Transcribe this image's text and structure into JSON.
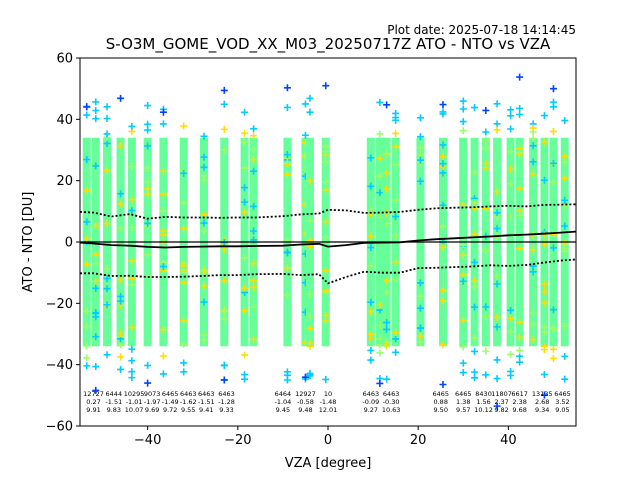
{
  "header": {
    "plot_date": "Plot date: 2025-07-18 14:14:45",
    "title": "S-O3M_GOME_VOD_XX_M03_20250717Z ATO - NTO vs VZA"
  },
  "chart_data": {
    "type": "scatter",
    "title": "S-O3M_GOME_VOD_XX_M03_20250717Z ATO - NTO vs VZA",
    "xlabel": "VZA [degree]",
    "ylabel": "ATO - NTO [DU]",
    "xlim": [
      -55,
      55
    ],
    "ylim": [
      -60,
      60
    ],
    "xticks": [
      -40,
      -20,
      0,
      20,
      40
    ],
    "yticks": [
      -60,
      -40,
      -20,
      0,
      20,
      40,
      60
    ],
    "grid": false,
    "colors": {
      "core_band": "#66ff99",
      "cyan": "#00ccff",
      "blue": "#0044ff",
      "yellow": "#ffdd00",
      "lightgreen": "#99ff66",
      "mean_line": "#000000",
      "zero_line": "#000000"
    },
    "bins": [
      {
        "x": -52,
        "n": "12727",
        "mean": "0.27",
        "sd": "9.91"
      },
      {
        "x": -47.5,
        "n": "6444",
        "mean": "-1.51",
        "sd": "9.83"
      },
      {
        "x": -43,
        "n": "10295",
        "mean": "-1.01",
        "sd": "10.07"
      },
      {
        "x": -39,
        "n": "9073",
        "mean": "-1.97",
        "sd": "9.69"
      },
      {
        "x": -35,
        "n": "6465",
        "mean": "-1.49",
        "sd": "9.72"
      },
      {
        "x": -31,
        "n": "6463",
        "mean": "-1.62",
        "sd": "9.55"
      },
      {
        "x": -27,
        "n": "6463",
        "mean": "-1.51",
        "sd": "9.41"
      },
      {
        "x": -22.5,
        "n": "6463",
        "mean": "-1.28",
        "sd": "9.33"
      },
      {
        "x": -10,
        "n": "6464",
        "mean": "-1.04",
        "sd": "9.45"
      },
      {
        "x": -5,
        "n": "12927",
        "mean": "-0.58",
        "sd": "9.48"
      },
      {
        "x": 0,
        "n": "10",
        "mean": "-1.48",
        "sd": "12.01"
      },
      {
        "x": 9.5,
        "n": "6463",
        "mean": "-0.09",
        "sd": "9.27"
      },
      {
        "x": 14,
        "n": "6463",
        "mean": "-0.30",
        "sd": "10.63"
      },
      {
        "x": 25,
        "n": "6465",
        "mean": "0.88",
        "sd": "9.50"
      },
      {
        "x": 30,
        "n": "6465",
        "mean": "1.38",
        "sd": "9.57"
      },
      {
        "x": 34.5,
        "n": "8430",
        "mean": "1.56",
        "sd": "10.12"
      },
      {
        "x": 38.5,
        "n": "11807",
        "mean": "2.37",
        "sd": "9.82"
      },
      {
        "x": 42.5,
        "n": "6617",
        "mean": "2.38",
        "sd": "9.68"
      },
      {
        "x": 47.5,
        "n": "13135",
        "mean": "2.68",
        "sd": "9.34"
      },
      {
        "x": 52,
        "n": "6465",
        "mean": "3.52",
        "sd": "9.05"
      }
    ],
    "columns_x": [
      -53.5,
      -51.5,
      -49,
      -46,
      -43.5,
      -40,
      -36.5,
      -32,
      -27.5,
      -23,
      -18.5,
      -16.5,
      -9,
      -5,
      -4,
      -0.5,
      9.5,
      11.5,
      13,
      15,
      20.5,
      25.5,
      30,
      32.5,
      35,
      37.5,
      40.5,
      42.5,
      45.5,
      48,
      50,
      52.5
    ],
    "mean_curve": {
      "x": [
        -55,
        -52,
        -48,
        -44,
        -40,
        -36,
        -32,
        -28,
        -24,
        -20,
        -16,
        -10,
        -6,
        -2,
        0,
        4,
        8,
        12,
        16,
        20,
        24,
        28,
        32,
        36,
        40,
        44,
        48,
        52,
        55
      ],
      "y": [
        -0.2,
        -0.5,
        -1.0,
        -1.2,
        -1.6,
        -1.8,
        -1.6,
        -1.5,
        -1.4,
        -1.4,
        -1.3,
        -1.2,
        -0.8,
        -0.6,
        -1.5,
        -1.0,
        -0.3,
        -0.2,
        -0.1,
        0.5,
        0.9,
        1.2,
        1.5,
        1.8,
        2.2,
        2.4,
        2.7,
        3.1,
        3.4
      ]
    },
    "upper_sd_curve": {
      "x": [
        -55,
        -52,
        -48,
        -44,
        -40,
        -36,
        -32,
        -28,
        -24,
        -20,
        -16,
        -10,
        -6,
        -2,
        0,
        4,
        8,
        12,
        16,
        20,
        24,
        28,
        32,
        36,
        40,
        44,
        48,
        52,
        55
      ],
      "y": [
        9.8,
        9.6,
        8.3,
        9.1,
        7.6,
        8.2,
        8.0,
        8.0,
        7.9,
        8.0,
        8.0,
        8.4,
        9.0,
        9.3,
        10.5,
        10.3,
        9.5,
        9.6,
        9.8,
        10.5,
        11.0,
        11.2,
        11.3,
        11.6,
        11.8,
        11.6,
        12.1,
        12.2,
        12.3
      ]
    },
    "lower_sd_curve": {
      "x": [
        -55,
        -52,
        -48,
        -44,
        -40,
        -36,
        -32,
        -28,
        -24,
        -20,
        -16,
        -10,
        -6,
        -2,
        0,
        4,
        8,
        12,
        16,
        20,
        24,
        28,
        32,
        36,
        40,
        44,
        48,
        52,
        55
      ],
      "y": [
        -10.2,
        -10.2,
        -11.1,
        -11.0,
        -11.4,
        -11.4,
        -11.3,
        -11.1,
        -10.8,
        -10.8,
        -10.5,
        -10.4,
        -10.8,
        -10.5,
        -13.5,
        -11.4,
        -9.7,
        -10.0,
        -10.0,
        -8.5,
        -8.4,
        -8.2,
        -8.0,
        -7.6,
        -7.8,
        -7.5,
        -6.7,
        -6.0,
        -5.7
      ]
    }
  }
}
